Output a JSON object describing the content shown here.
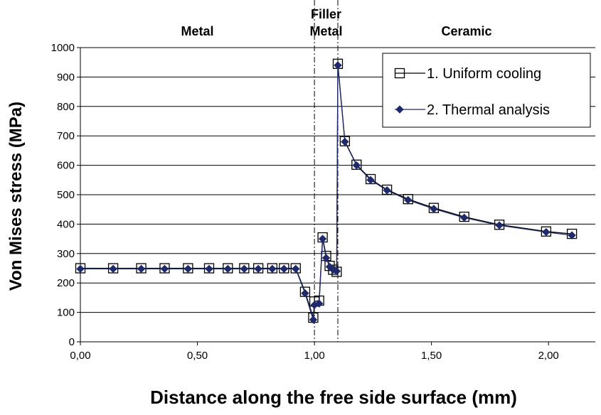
{
  "chart_data": {
    "type": "line",
    "xlabel": "Distance along the free side surface (mm)",
    "ylabel": "Von Mises stress (MPa)",
    "xlim": [
      0,
      2.2
    ],
    "ylim": [
      0,
      1000
    ],
    "x_ticks": [
      "0,00",
      "0,50",
      "1,00",
      "1,50",
      "2,00"
    ],
    "x_tick_values": [
      0,
      0.5,
      1.0,
      1.5,
      2.0
    ],
    "y_ticks": [
      "0",
      "100",
      "200",
      "300",
      "400",
      "500",
      "600",
      "700",
      "800",
      "900",
      "1000"
    ],
    "y_tick_values": [
      0,
      100,
      200,
      300,
      400,
      500,
      600,
      700,
      800,
      900,
      1000
    ],
    "grid": "horizontal",
    "legend_position": "top-right",
    "region_labels": [
      {
        "lines": [
          "Metal"
        ],
        "x": 0.5
      },
      {
        "lines": [
          "Filler",
          "Metal"
        ],
        "x": 1.05
      },
      {
        "lines": [
          "Ceramic"
        ],
        "x": 1.65
      }
    ],
    "boundaries": [
      1.0,
      1.1
    ],
    "series": [
      {
        "name": "1. Uniform cooling",
        "marker": "open-square",
        "color": "#000000",
        "x": [
          0.0,
          0.14,
          0.26,
          0.36,
          0.46,
          0.55,
          0.63,
          0.7,
          0.76,
          0.82,
          0.87,
          0.92,
          0.96,
          0.995,
          1.0,
          1.02,
          1.035,
          1.05,
          1.065,
          1.08,
          1.095,
          1.1,
          1.13,
          1.18,
          1.24,
          1.31,
          1.4,
          1.51,
          1.64,
          1.79,
          1.99,
          2.1
        ],
        "y": [
          250,
          250,
          250,
          250,
          250,
          250,
          250,
          250,
          250,
          250,
          250,
          250,
          170,
          82,
          137,
          140,
          355,
          292,
          258,
          245,
          238,
          945,
          682,
          602,
          553,
          517,
          485,
          455,
          425,
          398,
          375,
          367
        ]
      },
      {
        "name": "2. Thermal analysis",
        "marker": "filled-diamond",
        "color": "#1f2a6b",
        "x": [
          0.0,
          0.14,
          0.26,
          0.36,
          0.46,
          0.55,
          0.63,
          0.7,
          0.76,
          0.82,
          0.87,
          0.92,
          0.96,
          0.995,
          1.0,
          1.02,
          1.035,
          1.05,
          1.065,
          1.08,
          1.095,
          1.1,
          1.13,
          1.18,
          1.24,
          1.31,
          1.4,
          1.51,
          1.64,
          1.79,
          1.99,
          2.1
        ],
        "y": [
          248,
          248,
          248,
          248,
          248,
          248,
          248,
          248,
          248,
          248,
          248,
          248,
          165,
          75,
          125,
          130,
          350,
          285,
          255,
          245,
          240,
          940,
          680,
          600,
          550,
          515,
          482,
          452,
          422,
          396,
          373,
          362
        ]
      }
    ]
  }
}
